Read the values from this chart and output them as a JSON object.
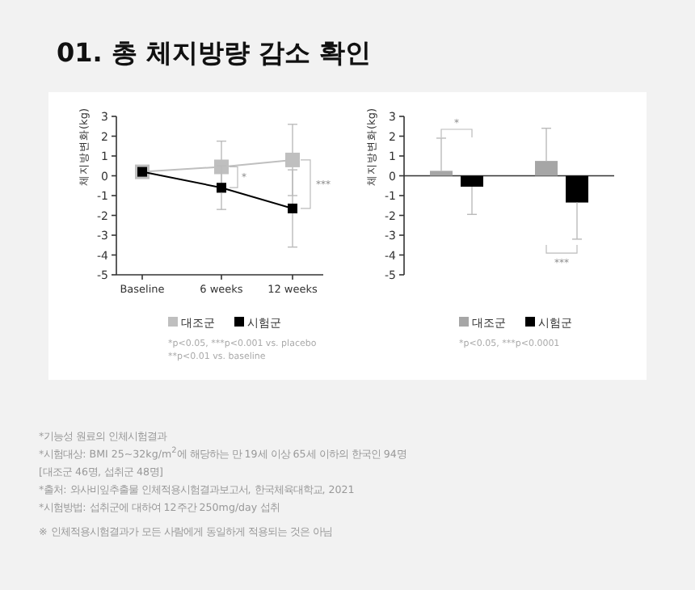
{
  "chart_data": [
    {
      "type": "line",
      "title": "01. 총 체지방량 감소 확인",
      "ylabel": "체지방변화(kg)",
      "categories": [
        "Baseline",
        "6 weeks",
        "12 weeks"
      ],
      "series": [
        {
          "name": "대조군",
          "color": "#bfbfbf",
          "values": [
            0.2,
            0.45,
            0.8
          ],
          "errors": [
            null,
            1.3,
            1.8
          ]
        },
        {
          "name": "시험군",
          "color": "#000000",
          "values": [
            0.2,
            -0.6,
            -1.65
          ],
          "errors": [
            null,
            1.1,
            1.95
          ]
        }
      ],
      "ylim": [
        -5,
        3
      ],
      "yticks": [
        -5,
        -4,
        -3,
        -2,
        -1,
        0,
        1,
        2,
        3
      ],
      "marker": "square",
      "legend": "bottom",
      "annotations": [
        "*",
        "***",
        "*p<0.05, ***p<0.001 vs. placebo",
        "**p<0.01 vs. baseline"
      ]
    },
    {
      "type": "bar",
      "ylabel": "체지방변화(kg)",
      "categories": [
        null,
        null
      ],
      "series": [
        {
          "name": "대조군",
          "color": "#a6a6a6",
          "values": [
            0.25,
            0.75
          ],
          "errors": [
            [
              0.25,
              1.9
            ],
            [
              0.75,
              2.4
            ]
          ]
        },
        {
          "name": "시험군",
          "color": "#000000",
          "values": [
            -0.55,
            -1.35
          ],
          "errors": [
            [
              -1.95,
              -0.55
            ],
            [
              -3.2,
              -1.35
            ]
          ]
        }
      ],
      "ylim": [
        -5,
        3
      ],
      "yticks": [
        -5,
        -4,
        -3,
        -2,
        -1,
        0,
        1,
        2,
        3
      ],
      "legend": "bottom",
      "annotations": [
        "*",
        "***",
        "*p<0.05, ***p<0.0001"
      ]
    },
    {
      "type": "other",
      "annotations": [
        "*기능성 원료의 인체시험결과",
        "*시험대상: BMI 25~32kg/m$^{2}$에 해당하는 만 19세 이상 65세 이하의 한국인 94명",
        "[대조군 46명, 섭취군 48명]",
        "*출처: 와사비잎추출물 인체적용시험결과보고서, 한국체육대학교, 2021",
        "*시험방법: 섭취군에 대하여 12주간 250mg/day 섭취",
        "※ 인체적용시험결과가 모든 사람에게 동일하게 적용되는 것은 아님"
      ]
    }
  ]
}
